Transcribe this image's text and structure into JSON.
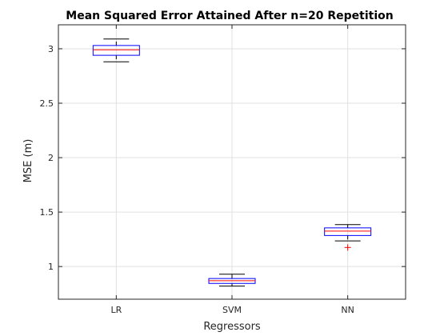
{
  "chart_data": {
    "type": "box",
    "title": "Mean Squared Error Attained After n=20 Repetition",
    "xlabel": "Regressors",
    "ylabel": "MSE (m)",
    "categories": [
      "LR",
      "SVM",
      "NN"
    ],
    "ylim": [
      0.7,
      3.22
    ],
    "yticks": [
      1,
      1.5,
      2,
      2.5,
      3
    ],
    "ytick_labels": [
      "1",
      "1.5",
      "2",
      "2.5",
      "3"
    ],
    "grid": true,
    "boxes": [
      {
        "label": "LR",
        "whisker_low": 2.88,
        "q1": 2.94,
        "median": 2.99,
        "q3": 3.03,
        "whisker_high": 3.09,
        "outliers": []
      },
      {
        "label": "SVM",
        "whisker_low": 0.82,
        "q1": 0.845,
        "median": 0.87,
        "q3": 0.89,
        "whisker_high": 0.93,
        "outliers": []
      },
      {
        "label": "NN",
        "whisker_low": 1.235,
        "q1": 1.285,
        "median": 1.325,
        "q3": 1.355,
        "whisker_high": 1.385,
        "outliers": [
          1.175
        ]
      }
    ],
    "colors": {
      "box": "#0000ff",
      "median": "#ff0000",
      "whisker": "#000000",
      "outlier": "#ff0000",
      "grid": "#e0e0e0",
      "axis": "#262626"
    }
  }
}
